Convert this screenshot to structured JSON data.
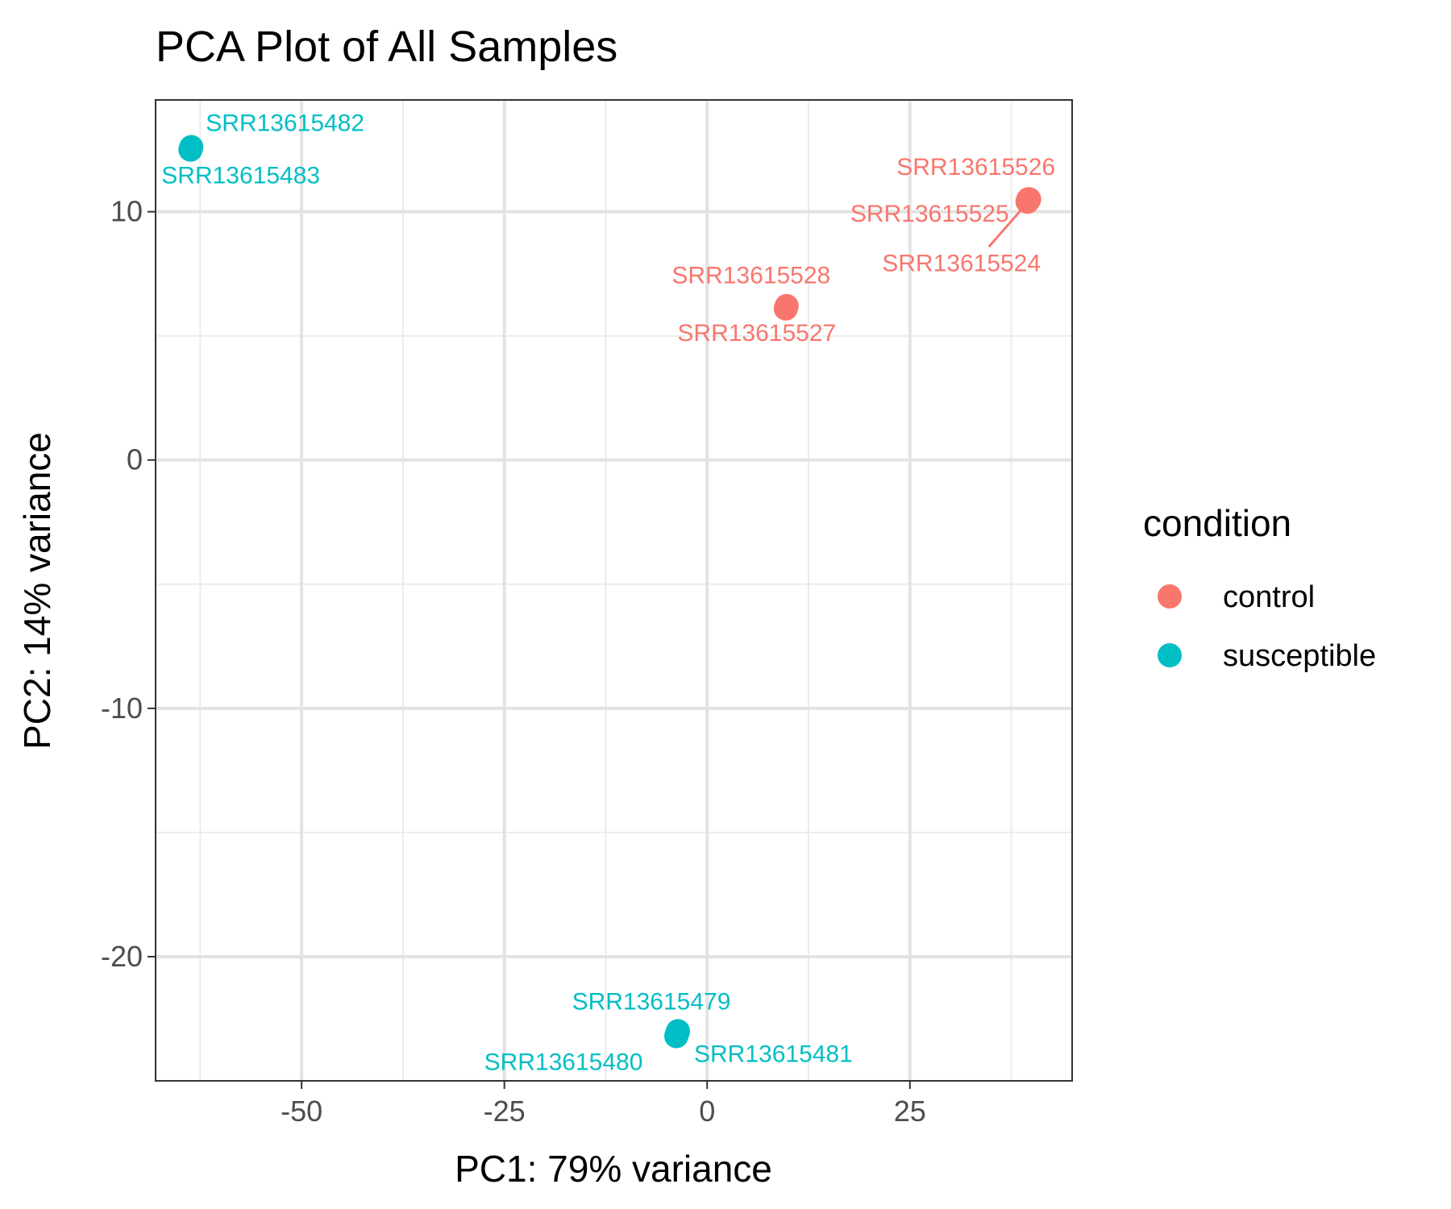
{
  "chart_data": {
    "type": "scatter",
    "title": "PCA Plot of All Samples",
    "xlabel": "PC1: 79% variance",
    "ylabel": "PC2: 14% variance",
    "xlim": [
      -68,
      45
    ],
    "ylim": [
      -25,
      14.5
    ],
    "x_ticks": [
      -50,
      -25,
      0,
      25
    ],
    "x_tick_labels": [
      "-50",
      "-25",
      "0",
      "25"
    ],
    "y_ticks": [
      -20,
      -10,
      0,
      10
    ],
    "y_tick_labels": [
      "-20",
      "-10",
      "0",
      "10"
    ],
    "grid": true,
    "legend": {
      "title": "condition",
      "placement": "right",
      "entries": [
        {
          "label": "control",
          "color": "#F8766D"
        },
        {
          "label": "susceptible",
          "color": "#00BFC4"
        }
      ]
    },
    "series": [
      {
        "name": "control",
        "color": "#F8766D",
        "points": [
          {
            "label": "SRR13615524",
            "x": 39.5,
            "y": 10.4
          },
          {
            "label": "SRR13615525",
            "x": 39.6,
            "y": 10.5
          },
          {
            "label": "SRR13615526",
            "x": 39.7,
            "y": 10.5
          },
          {
            "label": "SRR13615527",
            "x": 9.7,
            "y": 6.1
          },
          {
            "label": "SRR13615528",
            "x": 9.8,
            "y": 6.2
          }
        ]
      },
      {
        "name": "susceptible",
        "color": "#00BFC4",
        "points": [
          {
            "label": "SRR13615479",
            "x": -3.7,
            "y": -23.1
          },
          {
            "label": "SRR13615480",
            "x": -3.8,
            "y": -23.2
          },
          {
            "label": "SRR13615481",
            "x": -3.6,
            "y": -23.0
          },
          {
            "label": "SRR13615482",
            "x": -63.6,
            "y": 12.6
          },
          {
            "label": "SRR13615483",
            "x": -63.7,
            "y": 12.5
          }
        ]
      }
    ]
  }
}
